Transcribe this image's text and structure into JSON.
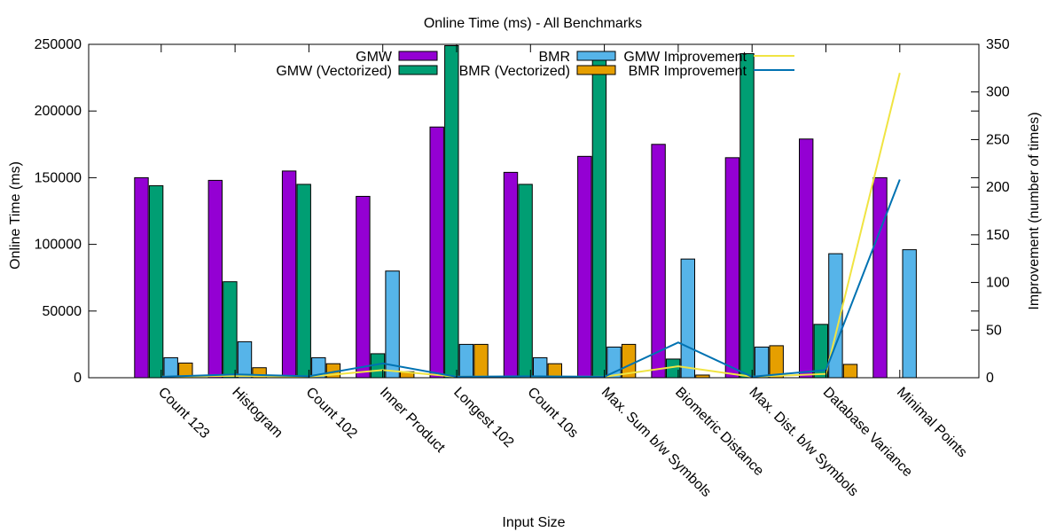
{
  "chart_data": {
    "type": "bar",
    "title": "Online Time (ms) - All Benchmarks",
    "xlabel": "Input Size",
    "ylabel": "Online Time (ms)",
    "y2label": "Improvement (number of times)",
    "ylim": [
      0,
      250000
    ],
    "y2lim": [
      0,
      350
    ],
    "yticks": [
      "0",
      "50000",
      "100000",
      "150000",
      "200000",
      "250000"
    ],
    "y2ticks": [
      "0",
      "50",
      "100",
      "150",
      "200",
      "250",
      "300",
      "350"
    ],
    "legend_position": "top-center",
    "grid": false,
    "categories": [
      "Count 123",
      "Histogram",
      "Count 102",
      "Inner Product",
      "Longest 102",
      "Count 10s",
      "Max. Sum b/w Symbols",
      "Biometric Distance",
      "Max. Dist. b/w Symbols",
      "Database Variance",
      "Minimal Points"
    ],
    "bar_series": [
      {
        "name": "GMW",
        "color": "#9400d3",
        "values": [
          150000,
          148000,
          155000,
          136000,
          188000,
          154000,
          166000,
          175000,
          165000,
          179000,
          150000
        ]
      },
      {
        "name": "GMW (Vectorized)",
        "color": "#009e73",
        "values": [
          144000,
          72000,
          145000,
          18000,
          249000,
          145000,
          241000,
          14000,
          243000,
          40000,
          null
        ]
      },
      {
        "name": "BMR",
        "color": "#56b4e9",
        "values": [
          15000,
          27000,
          15000,
          80000,
          25000,
          15000,
          23000,
          89000,
          23000,
          93000,
          96000
        ]
      },
      {
        "name": "BMR (Vectorized)",
        "color": "#e69f00",
        "values": [
          11000,
          7500,
          10500,
          4500,
          25000,
          10500,
          25000,
          2000,
          24000,
          10000,
          null
        ]
      }
    ],
    "line_series": [
      {
        "name": "GMW Improvement",
        "color": "#f0e442",
        "values": [
          1,
          2,
          1,
          8,
          1,
          1,
          1,
          12,
          1,
          4,
          320
        ]
      },
      {
        "name": "BMR Improvement",
        "color": "#0072b2",
        "values": [
          1,
          3.5,
          1.5,
          15,
          1,
          1.5,
          1,
          37,
          1,
          8,
          208
        ]
      }
    ]
  }
}
